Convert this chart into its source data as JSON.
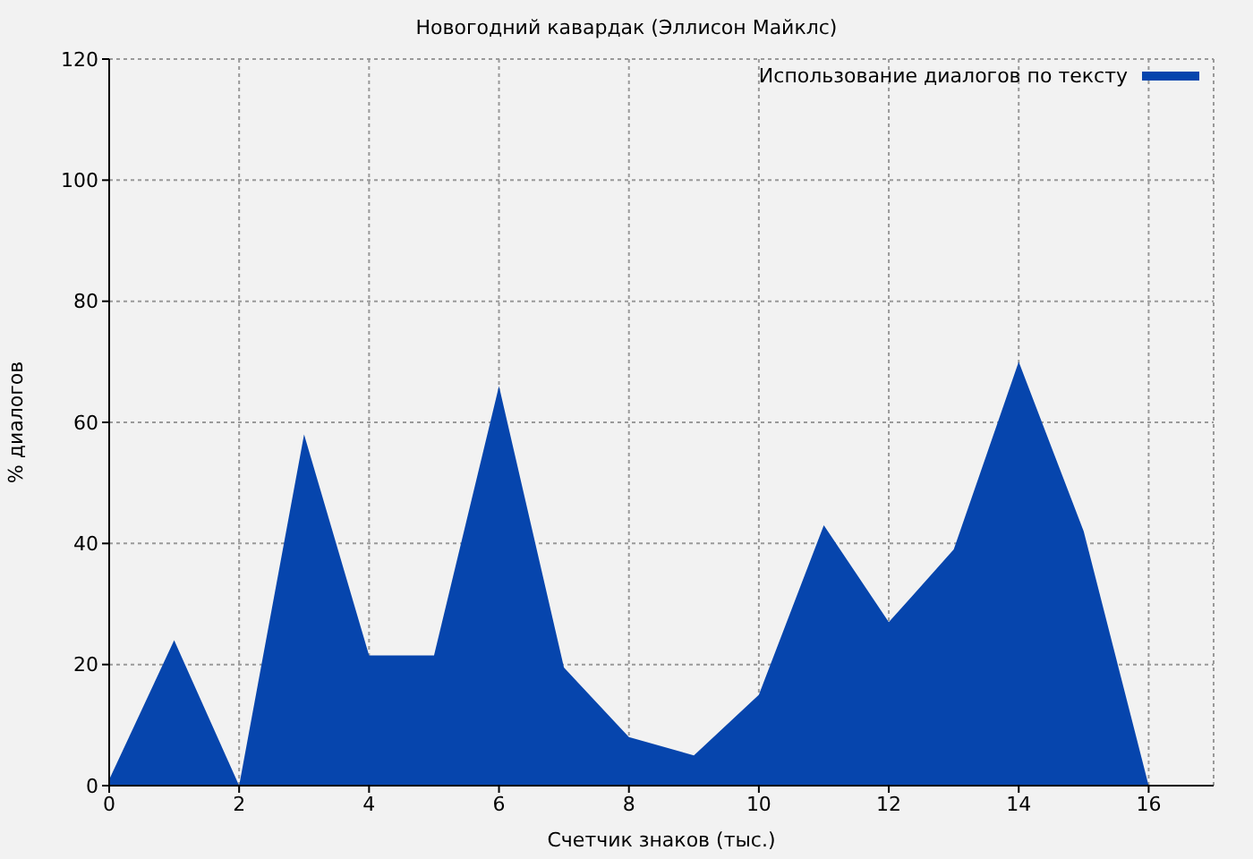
{
  "chart_data": {
    "type": "area",
    "title": "Новогодний кавардак (Эллисон Майклс)",
    "xlabel": "Счетчик знаков (тыс.)",
    "ylabel": "% диалогов",
    "x": [
      0,
      1,
      2,
      3,
      4,
      5,
      6,
      7,
      8,
      9,
      10,
      11,
      12,
      13,
      14,
      15,
      16
    ],
    "series": [
      {
        "name": "Использование диалогов по тексту",
        "color": "#0645ad",
        "values": [
          1,
          24,
          0,
          58,
          21.5,
          21.5,
          66,
          19.5,
          8,
          5,
          15,
          43,
          27,
          39,
          70,
          42,
          0
        ]
      }
    ],
    "xlim": [
      0,
      17
    ],
    "xticks": [
      0,
      2,
      4,
      6,
      8,
      10,
      12,
      14,
      16
    ],
    "ylim": [
      0,
      120
    ],
    "yticks": [
      0,
      20,
      40,
      60,
      80,
      100,
      120
    ],
    "grid": true,
    "legend": "top right"
  }
}
